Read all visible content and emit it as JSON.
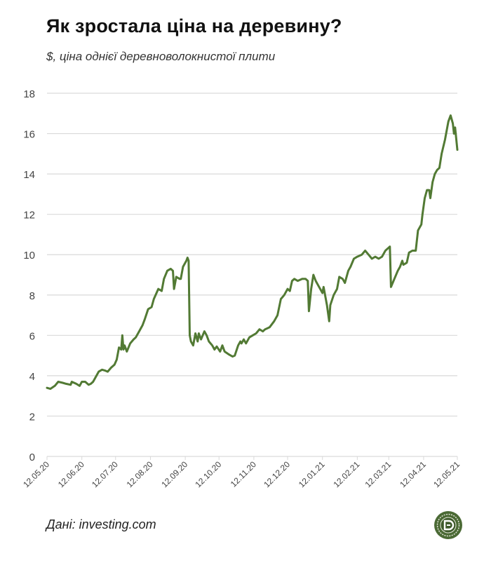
{
  "header": {
    "title": "Як зростала ціна на деревину?",
    "subtitle": "$, ціна однієї деревноволокнистої плити"
  },
  "footer": {
    "source": "Дані: investing.com",
    "logo_icon": "publisher-logo-icon"
  },
  "colors": {
    "line": "#527a34",
    "grid": "#d9d9d9",
    "logo": "#4b6a35"
  },
  "chart_data": {
    "type": "line",
    "title": "Як зростала ціна на деревину?",
    "ylabel": "$, ціна однієї деревноволокнистої плити",
    "xlabel": "",
    "ylim": [
      0,
      18
    ],
    "yticks": [
      0,
      2,
      4,
      6,
      8,
      10,
      12,
      14,
      16,
      18
    ],
    "xlim_days": [
      0,
      365
    ],
    "x_unit": "days since 12.05.20",
    "xtick_labels": [
      "12.05.20",
      "12.06.20",
      "12.07.20",
      "12.08.20",
      "12.09.20",
      "12.10.20",
      "12.11.20",
      "12.12.20",
      "12.01.21",
      "12.02.21",
      "12.03.21",
      "12.04.21",
      "12.05.21"
    ],
    "xtick_days": [
      0,
      31,
      61,
      92,
      123,
      153,
      184,
      214,
      245,
      276,
      304,
      335,
      365
    ],
    "grid": true,
    "series": [
      {
        "name": "price",
        "x": [
          0,
          3,
          7,
          10,
          14,
          17,
          21,
          22,
          26,
          29,
          31,
          34,
          37,
          39,
          41,
          44,
          46,
          49,
          52,
          54,
          57,
          60,
          62,
          64,
          66,
          67,
          68,
          69,
          71,
          74,
          77,
          79,
          82,
          85,
          87,
          90,
          93,
          95,
          99,
          102,
          104,
          107,
          110,
          112,
          113,
          115,
          118,
          119,
          121,
          124,
          125,
          126,
          127,
          128,
          130,
          132,
          134,
          135,
          137,
          140,
          142,
          144,
          147,
          149,
          151,
          154,
          156,
          158,
          162,
          165,
          167,
          170,
          172,
          173,
          175,
          177,
          180,
          183,
          186,
          189,
          192,
          194,
          198,
          202,
          205,
          208,
          211,
          214,
          216,
          218,
          220,
          223,
          227,
          230,
          232,
          233,
          235,
          237,
          239,
          242,
          245,
          246,
          249,
          251,
          252,
          255,
          258,
          260,
          263,
          265,
          268,
          270,
          273,
          276,
          280,
          283,
          286,
          289,
          292,
          295,
          298,
          301,
          305,
          306,
          309,
          312,
          314,
          316,
          317,
          320,
          322,
          325,
          328,
          330,
          333,
          334,
          336,
          338,
          340,
          341,
          343,
          345,
          347,
          349,
          351,
          354,
          356,
          357,
          359,
          361,
          362,
          363,
          365
        ],
        "y": [
          3.4,
          3.35,
          3.5,
          3.7,
          3.65,
          3.6,
          3.55,
          3.7,
          3.6,
          3.5,
          3.7,
          3.7,
          3.55,
          3.6,
          3.7,
          4.0,
          4.2,
          4.3,
          4.25,
          4.2,
          4.4,
          4.55,
          4.8,
          5.4,
          5.3,
          6.0,
          5.3,
          5.5,
          5.2,
          5.6,
          5.8,
          5.9,
          6.2,
          6.5,
          6.8,
          7.3,
          7.4,
          7.8,
          8.3,
          8.2,
          8.8,
          9.2,
          9.3,
          9.2,
          8.3,
          8.9,
          8.8,
          8.8,
          9.4,
          9.7,
          9.85,
          9.7,
          6.0,
          5.7,
          5.5,
          6.1,
          5.7,
          6.1,
          5.8,
          6.2,
          6.0,
          5.7,
          5.5,
          5.3,
          5.45,
          5.2,
          5.5,
          5.2,
          5.05,
          4.95,
          5.0,
          5.5,
          5.7,
          5.6,
          5.8,
          5.6,
          5.9,
          6.0,
          6.1,
          6.3,
          6.2,
          6.3,
          6.4,
          6.7,
          7.0,
          7.8,
          8.0,
          8.3,
          8.2,
          8.7,
          8.8,
          8.7,
          8.8,
          8.8,
          8.7,
          7.2,
          8.3,
          9.0,
          8.7,
          8.4,
          8.1,
          8.4,
          7.5,
          6.7,
          7.5,
          8.0,
          8.3,
          8.9,
          8.8,
          8.6,
          9.2,
          9.4,
          9.8,
          9.9,
          10.0,
          10.2,
          10.0,
          9.8,
          9.9,
          9.8,
          9.9,
          10.2,
          10.4,
          8.4,
          8.8,
          9.2,
          9.4,
          9.7,
          9.5,
          9.6,
          10.1,
          10.2,
          10.2,
          11.2,
          11.5,
          12.0,
          12.8,
          13.2,
          13.2,
          12.8,
          13.6,
          14.0,
          14.2,
          14.3,
          15.0,
          15.7,
          16.3,
          16.6,
          16.9,
          16.5,
          16.0,
          16.3,
          15.2
        ]
      }
    ]
  }
}
